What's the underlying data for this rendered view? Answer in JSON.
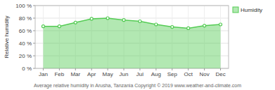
{
  "chart_data": {
    "type": "area",
    "categories": [
      "Jan",
      "Feb",
      "Mar",
      "Apr",
      "May",
      "Jun",
      "Jul",
      "Aug",
      "Sep",
      "Oct",
      "Nov",
      "Dec"
    ],
    "series": [
      {
        "name": "Humidity",
        "color": "#55cc55",
        "values": [
          67,
          67,
          73,
          79,
          80,
          77,
          75,
          70,
          66,
          64,
          68,
          70
        ]
      }
    ],
    "ylabel": "Relative humidity",
    "caption": "Average relative humidity in Arusha, Tanzania   Copyright © 2019 www.weather-and-climate.com",
    "ylim": [
      0,
      100
    ],
    "yticks": [
      {
        "value": 0,
        "label": "0 %"
      },
      {
        "value": 20,
        "label": "20 %"
      },
      {
        "value": 40,
        "label": "40 %"
      },
      {
        "value": 60,
        "label": "60 %"
      },
      {
        "value": 80,
        "label": "80 %"
      },
      {
        "value": 100,
        "label": "100 %"
      }
    ],
    "grid": true,
    "legend": "upper right",
    "marker": "circle"
  }
}
